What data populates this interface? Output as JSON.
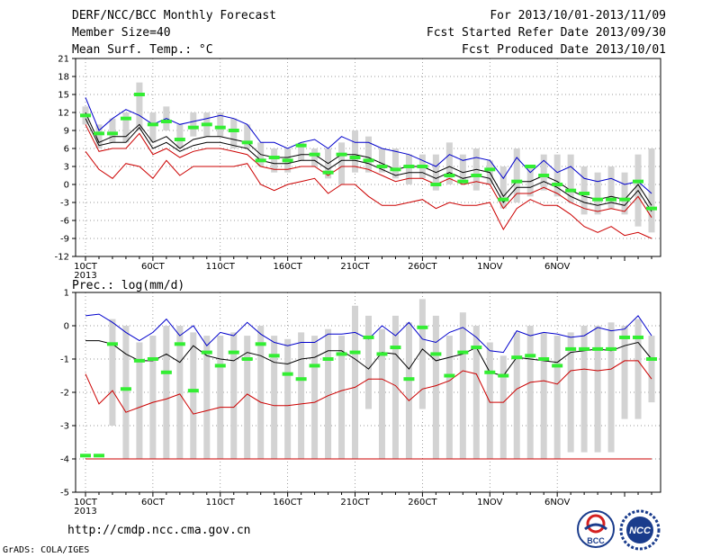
{
  "header": {
    "left": [
      "DERF/NCC/BCC Monthly Forecast",
      "Member Size=40",
      "Mean Surf. Temp.: °C"
    ],
    "right": [
      "For 2013/10/01-2013/11/09",
      "Fcst Started Refer Date 2013/09/30",
      "Fcst Produced Date 2013/10/01"
    ]
  },
  "footer": {
    "url": "http://cmdp.ncc.cma.gov.cn",
    "credit": "GrADS: COLA/IGES",
    "logo1_text": "BCC",
    "logo2_text": "NCC"
  },
  "colors": {
    "bar": "#d3d3d3",
    "spread_top": "#0000cc",
    "mean": "#000000",
    "spread_bottom": "#cc0000",
    "member": "#33ee33"
  },
  "chart_data": [
    {
      "type": "bar",
      "title": "Mean Surf. Temp.: °C",
      "ylim": [
        -12,
        21
      ],
      "yticks": [
        -12,
        -9,
        -6,
        -3,
        0,
        3,
        6,
        9,
        12,
        15,
        18,
        21
      ],
      "xtick_labels": [
        "10CT",
        "60CT",
        "110CT",
        "160CT",
        "210CT",
        "260CT",
        "1NOV",
        "6NOV"
      ],
      "xtick_year": "2013",
      "bar_low": [
        10,
        6,
        7,
        7,
        9,
        7,
        9,
        6,
        8,
        8,
        8,
        6,
        6,
        3,
        2,
        2,
        4,
        3,
        1,
        0,
        2,
        2,
        2,
        1,
        0,
        1,
        -1,
        0,
        0,
        -1,
        0,
        -4,
        -3,
        -2,
        -1,
        -2,
        -3,
        -5,
        -5,
        -4,
        -5,
        -7,
        -8
      ],
      "bar_high": [
        13,
        10,
        11,
        12,
        17,
        12,
        13,
        10,
        12,
        12,
        12,
        11,
        10,
        7,
        6,
        6,
        7,
        6,
        6,
        7,
        9,
        8,
        6,
        6,
        5,
        5,
        5,
        7,
        5,
        6,
        4,
        3,
        6,
        3,
        5,
        5,
        5,
        3,
        2,
        3,
        2,
        5,
        6
      ],
      "series": [
        {
          "name": "",
          "values": [
            14.5,
            9,
            11,
            12.5,
            11.5,
            10,
            11,
            10,
            10.5,
            11,
            11.5,
            11,
            10,
            7,
            7,
            6,
            7,
            7.5,
            6,
            8,
            7,
            7,
            6,
            5.5,
            5,
            4,
            3,
            5,
            4,
            4.5,
            4,
            1,
            4.5,
            2,
            4,
            2,
            3,
            1,
            0.5,
            1,
            0,
            0.5,
            -1.5
          ]
        },
        {
          "name": "",
          "values": [
            12,
            7,
            8,
            8,
            10,
            7,
            8,
            6,
            7.5,
            8,
            8,
            7.5,
            7,
            5,
            4.5,
            4.5,
            5,
            5,
            3.5,
            5,
            5,
            4.5,
            3.5,
            2.5,
            3,
            3,
            2,
            3,
            2,
            2.5,
            2,
            -2,
            0.5,
            0.5,
            1.5,
            0.5,
            -1,
            -2,
            -2.5,
            -2,
            -2.5,
            0,
            -3.5
          ]
        },
        {
          "name": "",
          "values": [
            11,
            6.5,
            7,
            7,
            9.5,
            6,
            7,
            5.5,
            6.5,
            7,
            7,
            6.5,
            6,
            4,
            3.5,
            3.5,
            4,
            4,
            2.5,
            4,
            4,
            3.5,
            2.5,
            1.5,
            2,
            2,
            1,
            2,
            1,
            1.5,
            1,
            -3,
            -0.5,
            -0.5,
            0.5,
            -0.5,
            -2,
            -3,
            -3.5,
            -3,
            -3.5,
            -1,
            -4.5
          ]
        },
        {
          "name": "",
          "values": [
            10,
            5.5,
            6,
            6,
            8.5,
            5,
            6,
            4.5,
            5.5,
            6,
            6,
            5.5,
            5,
            3,
            2.5,
            2.5,
            3,
            3,
            1.5,
            3,
            3,
            2.5,
            1.5,
            0.5,
            1,
            1,
            0,
            1,
            0,
            0.5,
            0,
            -4,
            -1.5,
            -1.5,
            -0.5,
            -1.5,
            -3,
            -4,
            -4.5,
            -4,
            -4.5,
            -2,
            -5.5
          ]
        },
        {
          "name": "",
          "values": [
            5.5,
            2.5,
            1,
            3.5,
            3,
            1,
            4,
            1.5,
            3,
            3,
            3,
            3,
            3.5,
            0,
            -1,
            0,
            0.5,
            1,
            -1.5,
            0,
            0,
            -2,
            -3.5,
            -3.5,
            -3,
            -2.5,
            -4,
            -3,
            -3.5,
            -3.5,
            -3,
            -7.5,
            -4,
            -2.5,
            -3.5,
            -3.5,
            -5,
            -7,
            -8,
            -7,
            -8.5,
            -8,
            -9
          ]
        }
      ],
      "member_marks": [
        11.5,
        8.5,
        8.5,
        11,
        15,
        10,
        10.5,
        7.5,
        9.5,
        10,
        9.5,
        9,
        7,
        4,
        4.5,
        4,
        6.5,
        5,
        2,
        5,
        4.5,
        4,
        3,
        2.5,
        3,
        3,
        0,
        1.5,
        0.5,
        1.5,
        2.5,
        -2.5,
        0.5,
        3,
        1.5,
        0,
        -1,
        -1.5,
        -2.5,
        -2.5,
        -2.5,
        0.5,
        -4
      ]
    },
    {
      "type": "bar",
      "title": "Prec.: log(mm/d)",
      "ylim": [
        -5,
        1
      ],
      "yticks": [
        -5,
        -4,
        -3,
        -2,
        -1,
        0,
        1
      ],
      "xtick_labels": [
        "10CT",
        "60CT",
        "110CT",
        "160CT",
        "210CT",
        "260CT",
        "1NOV",
        "6NOV"
      ],
      "xtick_year": "2013",
      "bar_low": [
        -4,
        -4,
        -3,
        -4,
        -4,
        -4,
        -4,
        -4,
        -4,
        -4,
        -4,
        -4,
        -4,
        -4,
        -4,
        -4,
        -4,
        -4,
        -4,
        -4,
        -4,
        -2.5,
        -4,
        -4,
        -4,
        -2.5,
        -4,
        -4,
        -4,
        -4,
        -4,
        -4,
        -4,
        -4,
        -4,
        -4,
        -3.8,
        -3.8,
        -3.8,
        -3.8,
        -2.8,
        -2.8,
        -2.3
      ],
      "bar_high": [
        -4,
        -4,
        0.2,
        0,
        -0.5,
        -0.3,
        0,
        0,
        -0.2,
        -0.3,
        -0.3,
        -0.2,
        -0.3,
        0,
        -0.3,
        -0.4,
        -0.2,
        -0.3,
        -0.1,
        -0.3,
        0.6,
        0.3,
        -0.1,
        0.3,
        0.1,
        0.8,
        0.3,
        -0.3,
        0.4,
        0,
        -0.5,
        -0.9,
        -0.2,
        0,
        -0.2,
        -0.3,
        -0.2,
        0,
        0,
        0.1,
        0,
        0.2,
        -0.3
      ],
      "series": [
        {
          "name": "",
          "values": [
            0.3,
            0.35,
            0.1,
            -0.2,
            -0.45,
            -0.2,
            0.2,
            -0.3,
            0,
            -0.6,
            -0.2,
            -0.3,
            0.1,
            -0.25,
            -0.5,
            -0.6,
            -0.5,
            -0.5,
            -0.25,
            -0.25,
            -0.2,
            -0.4,
            0,
            -0.3,
            0.1,
            -0.4,
            -0.5,
            -0.2,
            -0.05,
            -0.35,
            -0.75,
            -0.8,
            -0.15,
            -0.3,
            -0.2,
            -0.25,
            -0.35,
            -0.3,
            -0.05,
            -0.15,
            -0.1,
            0.3,
            -0.3
          ]
        },
        {
          "name": "",
          "values": [
            -0.45,
            -0.45,
            -0.55,
            -0.85,
            -1.05,
            -1.05,
            -0.85,
            -1.1,
            -0.6,
            -0.9,
            -1.0,
            -1.05,
            -0.8,
            -0.9,
            -1.1,
            -1.15,
            -1.0,
            -0.95,
            -0.75,
            -0.75,
            -1.0,
            -1.3,
            -0.8,
            -0.85,
            -1.3,
            -0.7,
            -1.05,
            -0.95,
            -0.85,
            -0.65,
            -1.4,
            -1.5,
            -0.95,
            -1.0,
            -1.05,
            -1.1,
            -0.8,
            -0.75,
            -0.7,
            -0.75,
            -0.6,
            -0.5,
            -1.0
          ]
        },
        {
          "name": "",
          "values": [
            -1.45,
            -2.35,
            -1.95,
            -2.6,
            -2.45,
            -2.3,
            -2.2,
            -2.05,
            -2.65,
            -2.55,
            -2.45,
            -2.45,
            -2.05,
            -2.3,
            -2.4,
            -2.4,
            -2.35,
            -2.3,
            -2.1,
            -1.95,
            -1.85,
            -1.6,
            -1.6,
            -1.8,
            -2.25,
            -1.9,
            -1.8,
            -1.65,
            -1.35,
            -1.45,
            -2.3,
            -2.3,
            -1.9,
            -1.7,
            -1.65,
            -1.75,
            -1.35,
            -1.3,
            -1.35,
            -1.3,
            -1.05,
            -1.05,
            -1.6
          ]
        },
        {
          "name": "",
          "values": [
            -4,
            -4,
            -4,
            -4,
            -4,
            -4,
            -4,
            -4,
            -4,
            -4,
            -4,
            -4,
            -4,
            -4,
            -4,
            -4,
            -4,
            -4,
            -4,
            -4,
            -4,
            -4,
            -4,
            -4,
            -4,
            -4,
            -4,
            -4,
            -4,
            -4,
            -4,
            -4,
            -4,
            -4,
            -4,
            -4,
            -4,
            -4,
            -4,
            -4,
            -4,
            -4,
            -4
          ]
        }
      ],
      "member_marks": [
        -3.9,
        -3.9,
        -0.55,
        -1.9,
        -1.05,
        -1.0,
        -1.4,
        -0.55,
        -1.95,
        -0.8,
        -1.2,
        -0.8,
        -1.0,
        -0.55,
        -0.9,
        -1.45,
        -1.6,
        -1.2,
        -1.0,
        -0.85,
        -0.8,
        -0.35,
        -0.85,
        -0.65,
        -1.6,
        -0.05,
        -0.85,
        -1.5,
        -0.8,
        -0.65,
        -1.4,
        -1.5,
        -0.95,
        -0.9,
        -1.0,
        -1.2,
        -0.7,
        -0.7,
        -0.7,
        -0.7,
        -0.35,
        -0.35,
        -1.0
      ]
    }
  ]
}
